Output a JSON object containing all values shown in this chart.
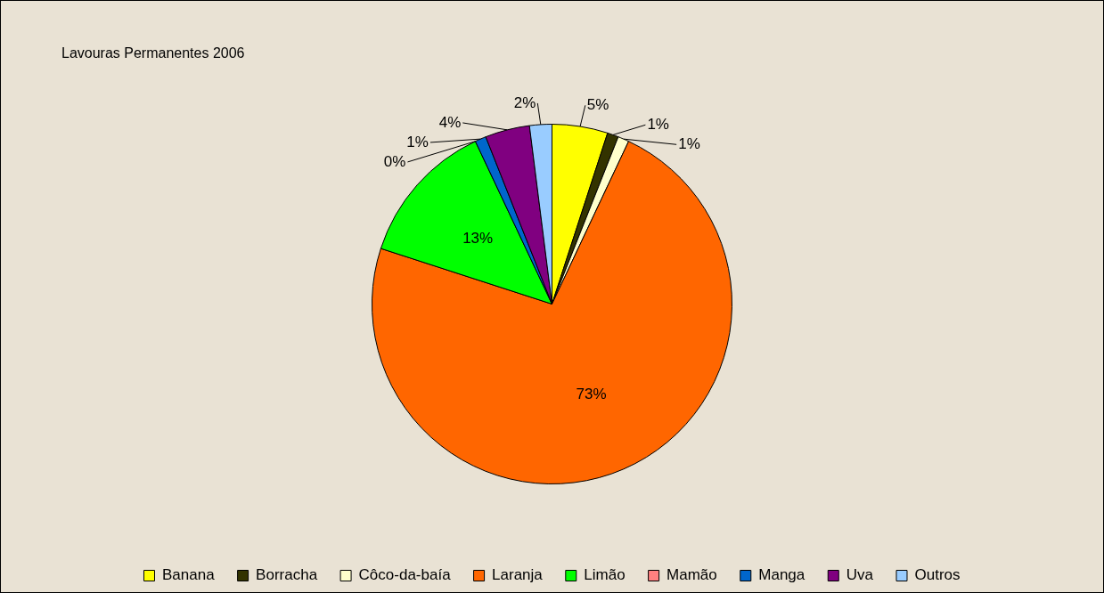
{
  "chart_data": {
    "type": "pie",
    "title": "Lavouras Permanentes 2006",
    "categories": [
      "Banana",
      "Borracha",
      "Côco-da-baía",
      "Laranja",
      "Limão",
      "Mamão",
      "Manga",
      "Uva",
      "Outros"
    ],
    "values": [
      5,
      1,
      1,
      73,
      13,
      0,
      1,
      4,
      2
    ],
    "value_labels": [
      "5%",
      "1%",
      "1%",
      "73%",
      "13%",
      "0%",
      "1%",
      "4%",
      "2%"
    ],
    "colors": [
      "#ffff00",
      "#333300",
      "#ffffcc",
      "#ff6600",
      "#00ff00",
      "#ff8080",
      "#0066cc",
      "#800080",
      "#99ccff"
    ],
    "legend": "bottom"
  }
}
